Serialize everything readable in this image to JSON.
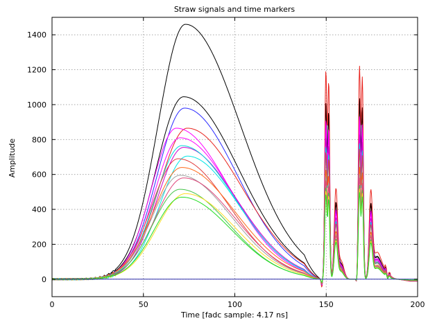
{
  "chart_data": {
    "type": "line",
    "title": "Straw signals and time markers",
    "xlabel": "Time   [fadc sample: 4.17 ns]",
    "ylabel": "Amplitude",
    "xlim": [
      0,
      200
    ],
    "ylim": [
      -100,
      1500
    ],
    "xticks": [
      0,
      50,
      100,
      150,
      200
    ],
    "yticks": [
      0,
      200,
      400,
      600,
      800,
      1000,
      1200,
      1400
    ],
    "grid": true,
    "series": [
      {
        "color": "#000000",
        "peak": 1460,
        "peak_x": 73,
        "rise": 15.0,
        "fall": 30,
        "marker_scale": 1.0
      },
      {
        "color": "#000000",
        "peak": 1045,
        "peak_x": 72,
        "rise": 15.0,
        "fall": 30,
        "marker_scale": 0.97
      },
      {
        "color": "#2a2aff",
        "peak": 980,
        "peak_x": 72.5,
        "rise": 15.0,
        "fall": 29,
        "marker_scale": 0.88
      },
      {
        "color": "#e8241e",
        "peak": 865,
        "peak_x": 74,
        "rise": 15.5,
        "fall": 30,
        "marker_scale": 1.18
      },
      {
        "color": "#ff00ff",
        "peak": 865,
        "peak_x": 68,
        "rise": 13.5,
        "fall": 29,
        "marker_scale": 0.9
      },
      {
        "color": "#ff00ff",
        "peak": 810,
        "peak_x": 70,
        "rise": 14.0,
        "fall": 29,
        "marker_scale": 0.85
      },
      {
        "color": "#cc00cc",
        "peak": 755,
        "peak_x": 72,
        "rise": 14.5,
        "fall": 29,
        "marker_scale": 0.8
      },
      {
        "color": "#00dddd",
        "peak": 765,
        "peak_x": 71,
        "rise": 14.5,
        "fall": 29,
        "marker_scale": 0.75
      },
      {
        "color": "#00e5e5",
        "peak": 705,
        "peak_x": 74,
        "rise": 15.0,
        "fall": 28,
        "marker_scale": 0.7
      },
      {
        "color": "#e03c3c",
        "peak": 690,
        "peak_x": 69,
        "rise": 14.5,
        "fall": 28,
        "marker_scale": 0.72
      },
      {
        "color": "#ff6a1a",
        "peak": 640,
        "peak_x": 71,
        "rise": 15.5,
        "fall": 29,
        "marker_scale": 0.62
      },
      {
        "color": "#a0a0a0",
        "peak": 595,
        "peak_x": 70,
        "rise": 15.0,
        "fall": 28,
        "marker_scale": 0.58
      },
      {
        "color": "#e0457a",
        "peak": 580,
        "peak_x": 72,
        "rise": 15.5,
        "fall": 28,
        "marker_scale": 0.56
      },
      {
        "color": "#44c44a",
        "peak": 515,
        "peak_x": 70,
        "rise": 15.0,
        "fall": 27,
        "marker_scale": 0.52
      },
      {
        "color": "#ffdd22",
        "peak": 490,
        "peak_x": 73,
        "rise": 15.5,
        "fall": 27,
        "marker_scale": 0.5
      },
      {
        "color": "#22dd22",
        "peak": 470,
        "peak_x": 71,
        "rise": 15.0,
        "fall": 27,
        "marker_scale": 0.48
      },
      {
        "color": "#2a2aaa",
        "peak": 0,
        "peak_x": 70,
        "rise": 15.0,
        "fall": 27,
        "marker_scale": 0.0
      }
    ]
  }
}
